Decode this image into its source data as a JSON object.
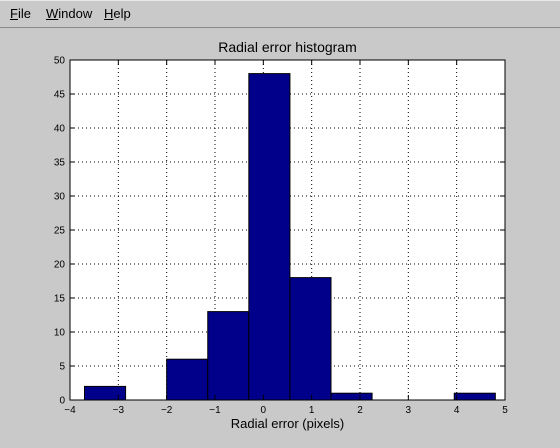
{
  "menu": {
    "items": [
      {
        "label": "File"
      },
      {
        "label": "Window"
      },
      {
        "label": "Help"
      }
    ]
  },
  "colors": {
    "background": "#c9c9c9",
    "axes_background": "#ffffff",
    "bar_fill": "#00008b",
    "bar_edge": "#000000",
    "grid": "#000000"
  },
  "chart_data": {
    "type": "bar",
    "title": "Radial error histogram",
    "xlabel": "Radial error (pixels)",
    "ylabel": "",
    "xlim": [
      -4,
      5
    ],
    "ylim": [
      0,
      50
    ],
    "xticks": [
      -4,
      -3,
      -2,
      -1,
      0,
      1,
      2,
      3,
      4,
      5
    ],
    "xtick_labels": [
      "−4",
      "−3",
      "−2",
      "−1",
      "0",
      "1",
      "2",
      "3",
      "4",
      "5"
    ],
    "yticks": [
      0,
      5,
      10,
      15,
      20,
      25,
      30,
      35,
      40,
      45,
      50
    ],
    "grid": true,
    "bin_edges": [
      -3.7,
      -2.85,
      -2.0,
      -1.15,
      -0.3,
      0.55,
      1.4,
      2.25,
      3.1,
      3.95,
      4.8
    ],
    "values": [
      2,
      0,
      6,
      13,
      48,
      18,
      1,
      0,
      0,
      1
    ]
  }
}
